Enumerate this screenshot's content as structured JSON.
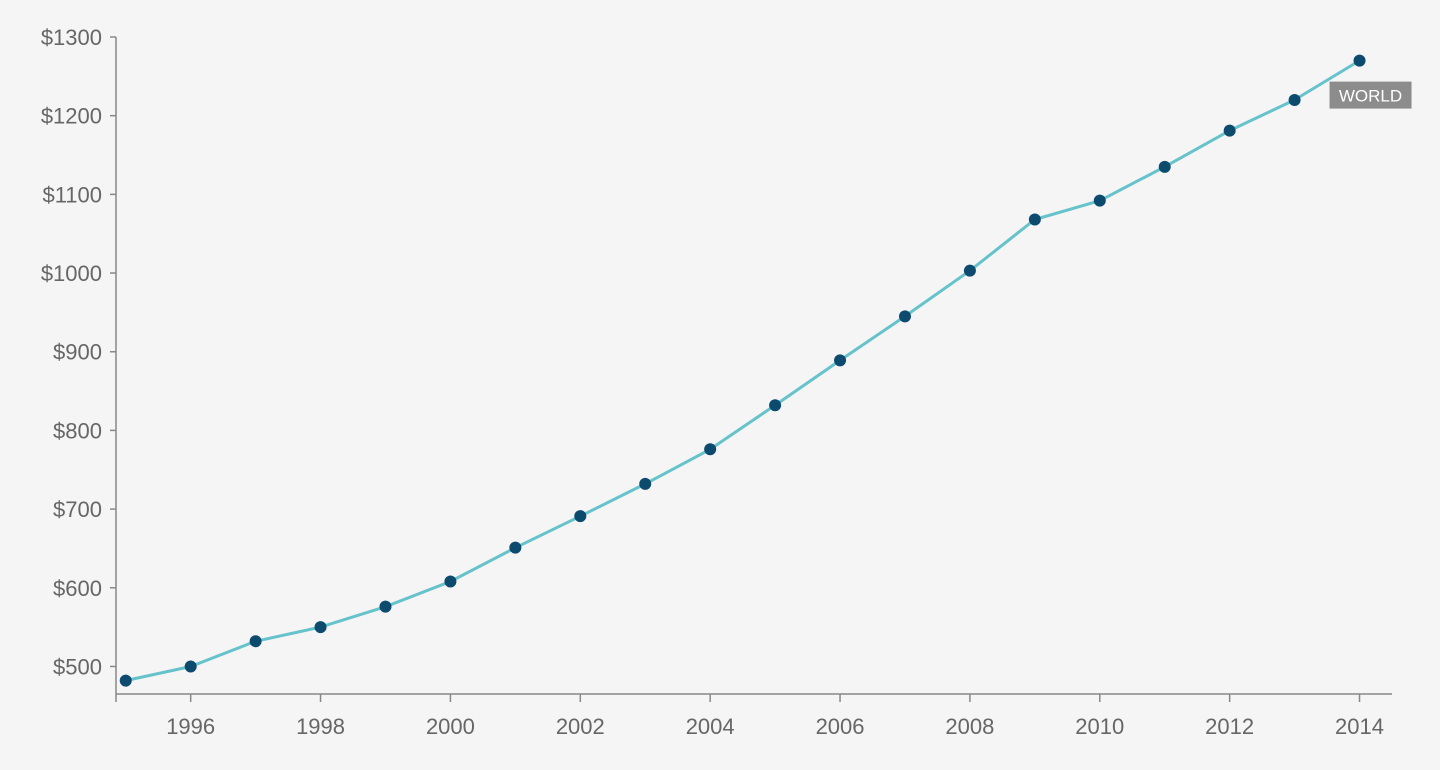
{
  "chart_data": {
    "type": "line",
    "title": "",
    "xlabel": "",
    "ylabel": "",
    "x": [
      1995,
      1996,
      1997,
      1998,
      1999,
      2000,
      2001,
      2002,
      2003,
      2004,
      2005,
      2006,
      2007,
      2008,
      2009,
      2010,
      2011,
      2012,
      2013,
      2014
    ],
    "series": [
      {
        "name": "WORLD",
        "values": [
          482,
          500,
          532,
          550,
          576,
          608,
          651,
          691,
          732,
          776,
          832,
          889,
          945,
          1003,
          1068,
          1092,
          1135,
          1181,
          1220,
          1270
        ]
      }
    ],
    "xlim": [
      1994.85,
      2014.5
    ],
    "ylim": [
      465,
      1300
    ],
    "x_ticks": [
      1996,
      1998,
      2000,
      2002,
      2004,
      2006,
      2008,
      2010,
      2012,
      2014
    ],
    "x_tick_labels": [
      "1996",
      "1998",
      "2000",
      "2002",
      "2004",
      "2006",
      "2008",
      "2010",
      "2012",
      "2014"
    ],
    "y_ticks": [
      500,
      600,
      700,
      800,
      900,
      1000,
      1100,
      1200,
      1300
    ],
    "y_tick_labels": [
      "$500",
      "$600",
      "$700",
      "$800",
      "$900",
      "$1000",
      "$1100",
      "$1200",
      "$1300"
    ],
    "grid": false,
    "legend": "none",
    "colors": {
      "line": "#66c2cb",
      "marker": "#0c4a6e",
      "axis": "#888888",
      "label_bg": "#8c8c8c",
      "label_text": "#ffffff",
      "background": "#f5f5f5"
    }
  }
}
